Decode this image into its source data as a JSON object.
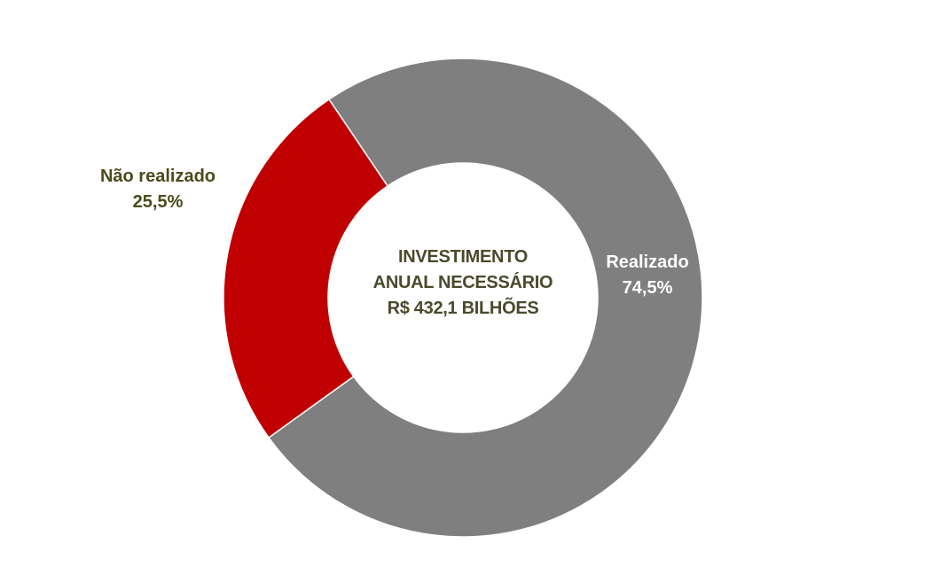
{
  "chart_data": {
    "type": "pie",
    "variant": "donut",
    "center_text": [
      "INVESTIMENTO",
      "ANUAL NECESSÁRIO",
      "R$ 432,1 BILHÕES"
    ],
    "start_angle_deg": -34,
    "slices": [
      {
        "name": "Realizado",
        "value": 74.5,
        "label": "74,5%",
        "color": "#7f7f7f",
        "label_color": "#ffffff",
        "label_placement": "inside"
      },
      {
        "name": "Não realizado",
        "value": 25.5,
        "label": "25,5%",
        "color": "#c00000",
        "label_color": "#4a4a1a",
        "label_placement": "outside-left"
      }
    ],
    "legend": "none"
  }
}
